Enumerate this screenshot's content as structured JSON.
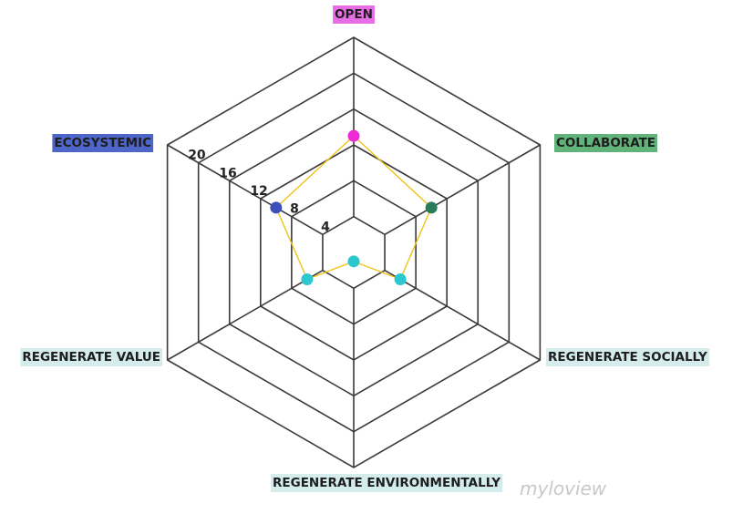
{
  "chart_data": {
    "type": "radar",
    "axes": [
      {
        "label": "OPEN",
        "bg": "#e86ee6",
        "color": "#ee2ad6"
      },
      {
        "label": "COLLABORATE",
        "bg": "#62b37a",
        "color": "#2a7a5c"
      },
      {
        "label": "REGENERATE SOCIALLY",
        "bg": "#d4ecec",
        "color": "#2cc8d0"
      },
      {
        "label": "REGENERATE ENVIRONMENTALLY",
        "bg": "#d4ecec",
        "color": "#2cc8d0"
      },
      {
        "label": "REGENERATE VALUE",
        "bg": "#d4ecec",
        "color": "#2cc8d0"
      },
      {
        "label": "ECOSYSTEMIC",
        "bg": "#4f66c9",
        "color": "#3d4fb8"
      }
    ],
    "values": [
      13,
      10,
      6,
      1,
      6,
      10
    ],
    "ticks": [
      "4",
      "8",
      "12",
      "16",
      "20"
    ],
    "rmax": 24,
    "line_color": "#f0c419"
  },
  "watermark": "myloview"
}
